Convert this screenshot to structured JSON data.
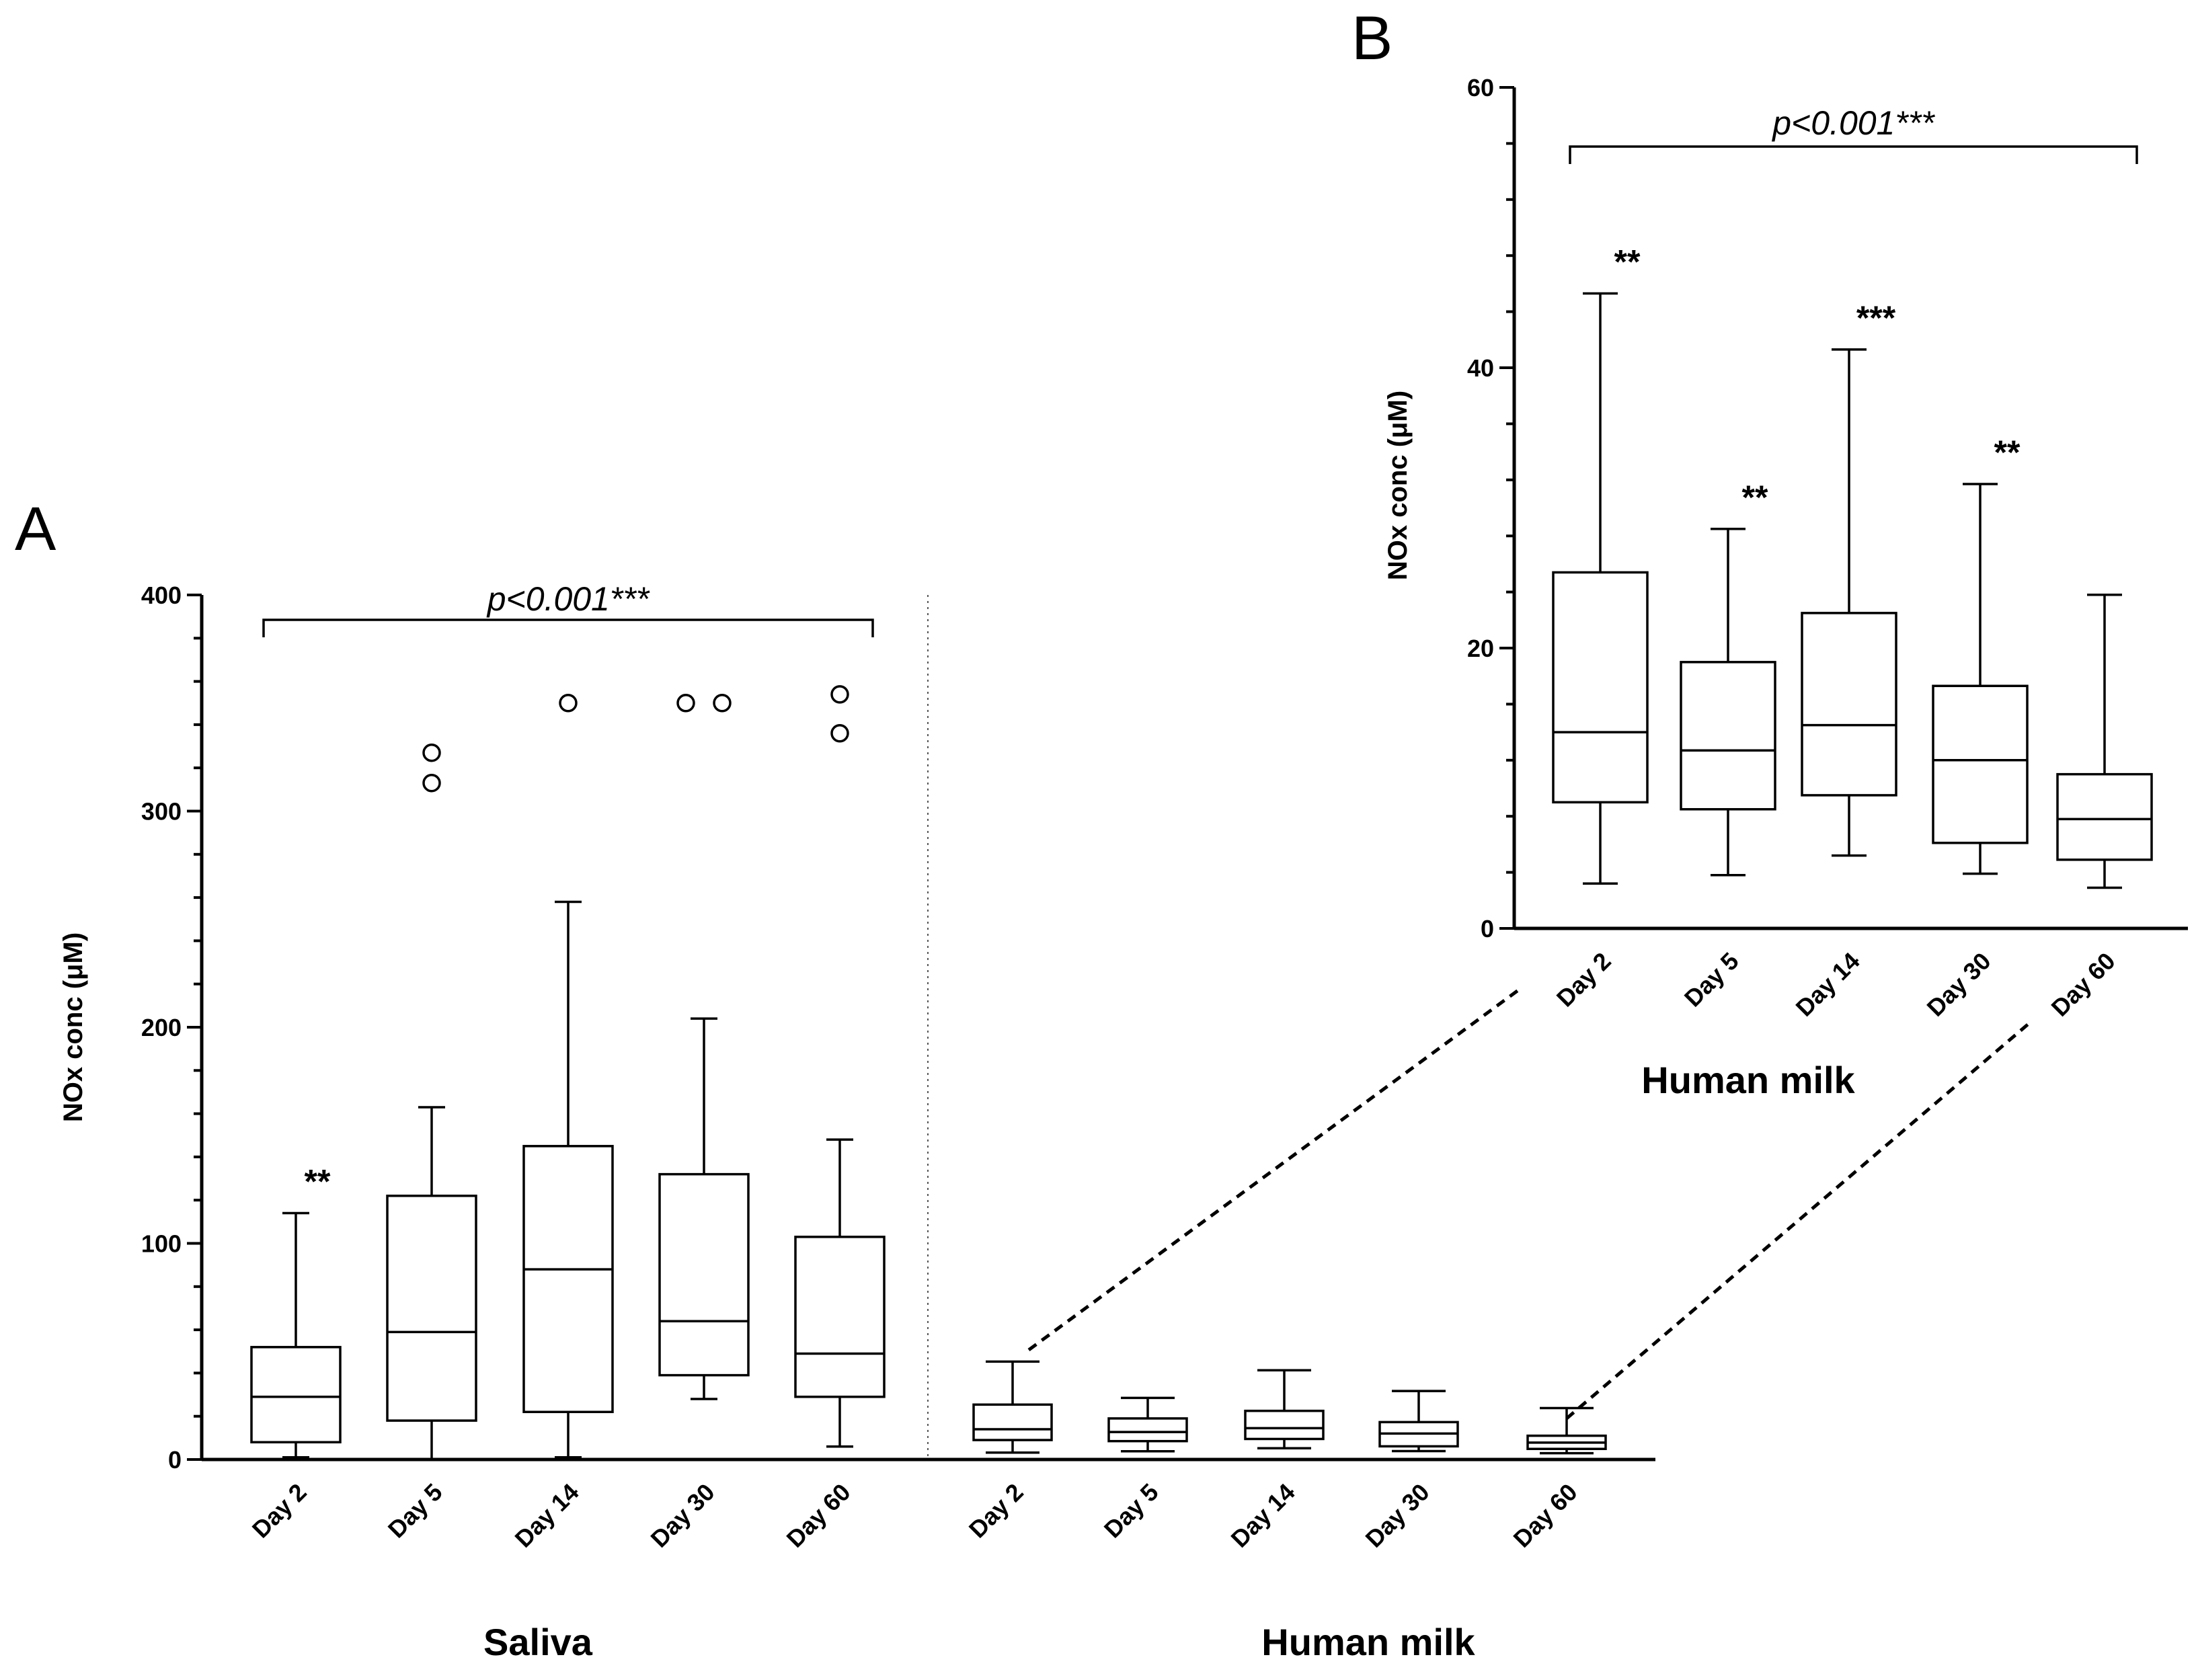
{
  "chart_data": [
    {
      "panel": "A",
      "type": "box",
      "ylabel": "NOx conc (μM)",
      "ylim": [
        0,
        400
      ],
      "yticks": [
        "0",
        "100",
        "200",
        "300",
        "400"
      ],
      "groups": [
        {
          "name": "Saliva",
          "categories": [
            "Day 2",
            "Day 5",
            "Day 14",
            "Day 30",
            "Day 60"
          ],
          "boxes": [
            {
              "min": 1,
              "q1": 8,
              "median": 29,
              "q3": 52,
              "max": 114,
              "outliers": [],
              "sig": "**"
            },
            {
              "min": 0,
              "q1": 18,
              "median": 59,
              "q3": 122,
              "max": 163,
              "outliers": [
                313,
                327
              ],
              "sig": ""
            },
            {
              "min": 1,
              "q1": 22,
              "median": 88,
              "q3": 145,
              "max": 258,
              "outliers": [
                350
              ],
              "sig": ""
            },
            {
              "min": 28,
              "q1": 39,
              "median": 64,
              "q3": 132,
              "max": 204,
              "outliers": [
                350,
                350
              ],
              "sig": ""
            },
            {
              "min": 6,
              "q1": 29,
              "median": 49,
              "q3": 103,
              "max": 148,
              "outliers": [
                336,
                354
              ],
              "sig": ""
            }
          ],
          "bracket_label": "p<0.001***"
        },
        {
          "name": "Human milk",
          "categories": [
            "Day 2",
            "Day 5",
            "Day 14",
            "Day 30",
            "Day 60"
          ],
          "boxes": [
            {
              "min": 3.2,
              "q1": 9.0,
              "median": 14.0,
              "q3": 25.4,
              "max": 45.3,
              "outliers": [],
              "sig": ""
            },
            {
              "min": 3.8,
              "q1": 8.5,
              "median": 12.7,
              "q3": 19.0,
              "max": 28.5,
              "outliers": [],
              "sig": ""
            },
            {
              "min": 5.2,
              "q1": 9.5,
              "median": 14.5,
              "q3": 22.5,
              "max": 41.3,
              "outliers": [],
              "sig": ""
            },
            {
              "min": 3.9,
              "q1": 6.1,
              "median": 12.0,
              "q3": 17.3,
              "max": 31.7,
              "outliers": [],
              "sig": ""
            },
            {
              "min": 2.9,
              "q1": 4.9,
              "median": 7.8,
              "q3": 11.0,
              "max": 23.8,
              "outliers": [],
              "sig": ""
            }
          ]
        }
      ]
    },
    {
      "panel": "B",
      "type": "box",
      "ylabel": "NOx conc (μM)",
      "ylim": [
        0,
        60
      ],
      "yticks": [
        "0",
        "20",
        "40",
        "60"
      ],
      "xgroup_label": "Human milk",
      "categories": [
        "Day 2",
        "Day 5",
        "Day 14",
        "Day 30",
        "Day 60"
      ],
      "boxes": [
        {
          "min": 3.2,
          "q1": 9.0,
          "median": 14.0,
          "q3": 25.4,
          "max": 45.3,
          "sig": "**"
        },
        {
          "min": 3.8,
          "q1": 8.5,
          "median": 12.7,
          "q3": 19.0,
          "max": 28.5,
          "sig": "**"
        },
        {
          "min": 5.2,
          "q1": 9.5,
          "median": 14.5,
          "q3": 22.5,
          "max": 41.3,
          "sig": "***"
        },
        {
          "min": 3.9,
          "q1": 6.1,
          "median": 12.0,
          "q3": 17.3,
          "max": 31.7,
          "sig": "**"
        },
        {
          "min": 2.9,
          "q1": 4.9,
          "median": 7.8,
          "q3": 11.0,
          "max": 23.8,
          "sig": ""
        }
      ],
      "bracket_label": "p<0.001***"
    }
  ]
}
